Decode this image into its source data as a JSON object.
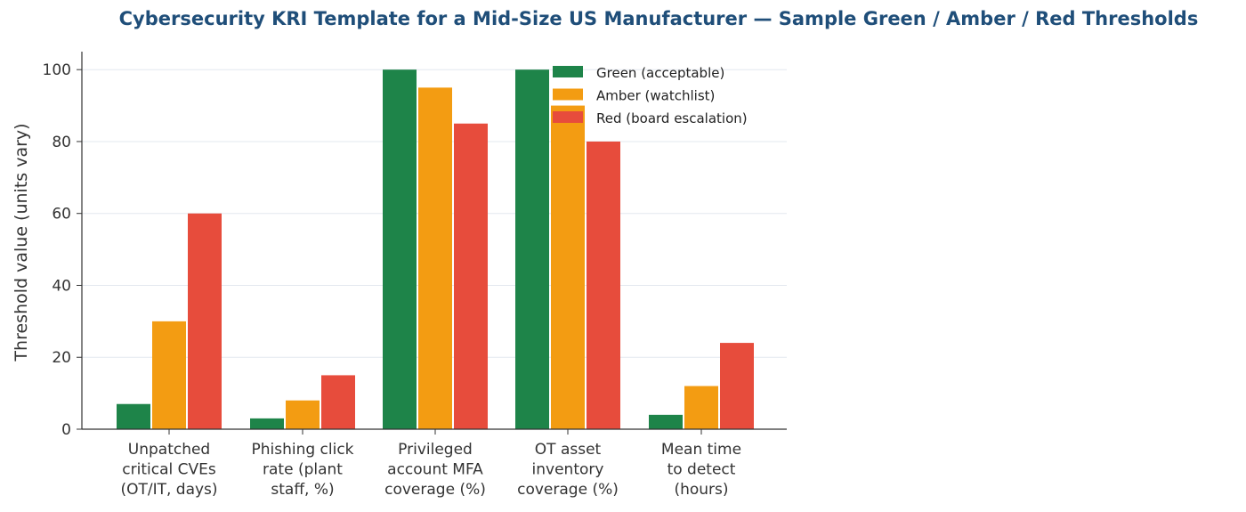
{
  "chart_data": {
    "type": "bar",
    "title": "Cybersecurity KRI Template for a Mid-Size US Manufacturer — Sample Green / Amber / Red Thresholds",
    "xlabel": "",
    "ylabel": "Threshold value (units vary)",
    "ylim": [
      0,
      105
    ],
    "yticks": [
      0,
      20,
      40,
      60,
      80,
      100
    ],
    "grid": "horizontal",
    "legend_position": "top-right",
    "categories": [
      [
        "Unpatched",
        "critical CVEs",
        "(OT/IT, days)"
      ],
      [
        "Phishing click",
        "rate (plant",
        "staff, %)"
      ],
      [
        "Privileged",
        "account MFA",
        "coverage (%)"
      ],
      [
        "OT asset",
        "inventory",
        "coverage (%)"
      ],
      [
        "Mean time",
        "to detect",
        "(hours)"
      ]
    ],
    "series": [
      {
        "name": "Green (acceptable)",
        "color": "#1e8449",
        "values": [
          7,
          3,
          100,
          100,
          4
        ]
      },
      {
        "name": "Amber (watchlist)",
        "color": "#f39c12",
        "values": [
          30,
          8,
          95,
          90,
          12
        ]
      },
      {
        "name": "Red (board escalation)",
        "color": "#e74c3c",
        "values": [
          60,
          15,
          85,
          80,
          24
        ]
      }
    ]
  }
}
